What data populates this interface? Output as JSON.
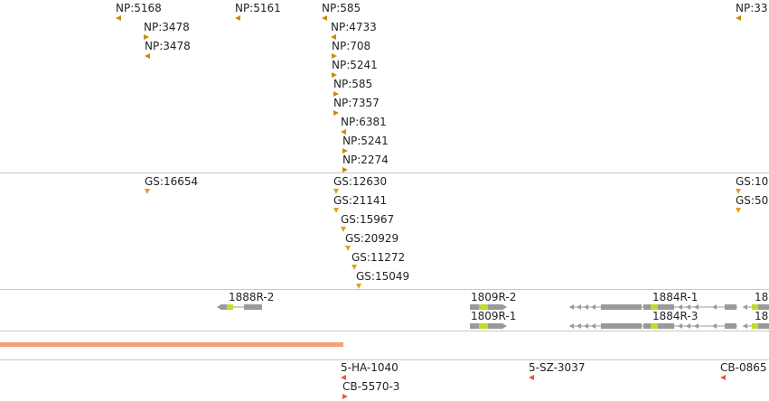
{
  "colors": {
    "separator": "#c8c8c8",
    "np_marker": "#c98a00",
    "gs_marker": "#e0a020",
    "gene_gray": "#9a9a9a",
    "gene_cds": "#c5d92a",
    "coverage_bar": "#f4a07a",
    "variant_marker": "#e8593a"
  },
  "np_track": {
    "features": [
      {
        "label": "NP:5168",
        "dir": "left"
      },
      {
        "label": "NP:5161",
        "dir": "left"
      },
      {
        "label": "NP:585",
        "dir": "left"
      },
      {
        "label": "NP:33",
        "dir": "left"
      },
      {
        "label": "NP:3478",
        "dir": "right"
      },
      {
        "label": "NP:3478",
        "dir": "left"
      },
      {
        "label": "NP:4733",
        "dir": "left"
      },
      {
        "label": "NP:708",
        "dir": "right"
      },
      {
        "label": "NP:5241",
        "dir": "right"
      },
      {
        "label": "NP:585",
        "dir": "right"
      },
      {
        "label": "NP:7357",
        "dir": "right"
      },
      {
        "label": "NP:6381",
        "dir": "left"
      },
      {
        "label": "NP:5241",
        "dir": "right"
      },
      {
        "label": "NP:2274",
        "dir": "right"
      }
    ]
  },
  "gs_track": {
    "features": [
      {
        "label": "GS:16654"
      },
      {
        "label": "GS:12630"
      },
      {
        "label": "GS:21141"
      },
      {
        "label": "GS:15967"
      },
      {
        "label": "GS:20929"
      },
      {
        "label": "GS:11272"
      },
      {
        "label": "GS:15049"
      },
      {
        "label": "GS:10"
      },
      {
        "label": "GS:50"
      }
    ]
  },
  "gene_track": {
    "genes": [
      {
        "label": "1888R-2"
      },
      {
        "label": "1809R-2"
      },
      {
        "label": "1809R-1"
      },
      {
        "label": "1884R-1"
      },
      {
        "label": "1884R-3"
      },
      {
        "label": "18"
      },
      {
        "label": "18"
      }
    ]
  },
  "variant_track": {
    "features": [
      {
        "label": "5-HA-1040",
        "dir": "left"
      },
      {
        "label": "CB-5570-3",
        "dir": "right"
      },
      {
        "label": "5-SZ-3037",
        "dir": "left"
      },
      {
        "label": "CB-0865",
        "dir": "left"
      }
    ]
  }
}
